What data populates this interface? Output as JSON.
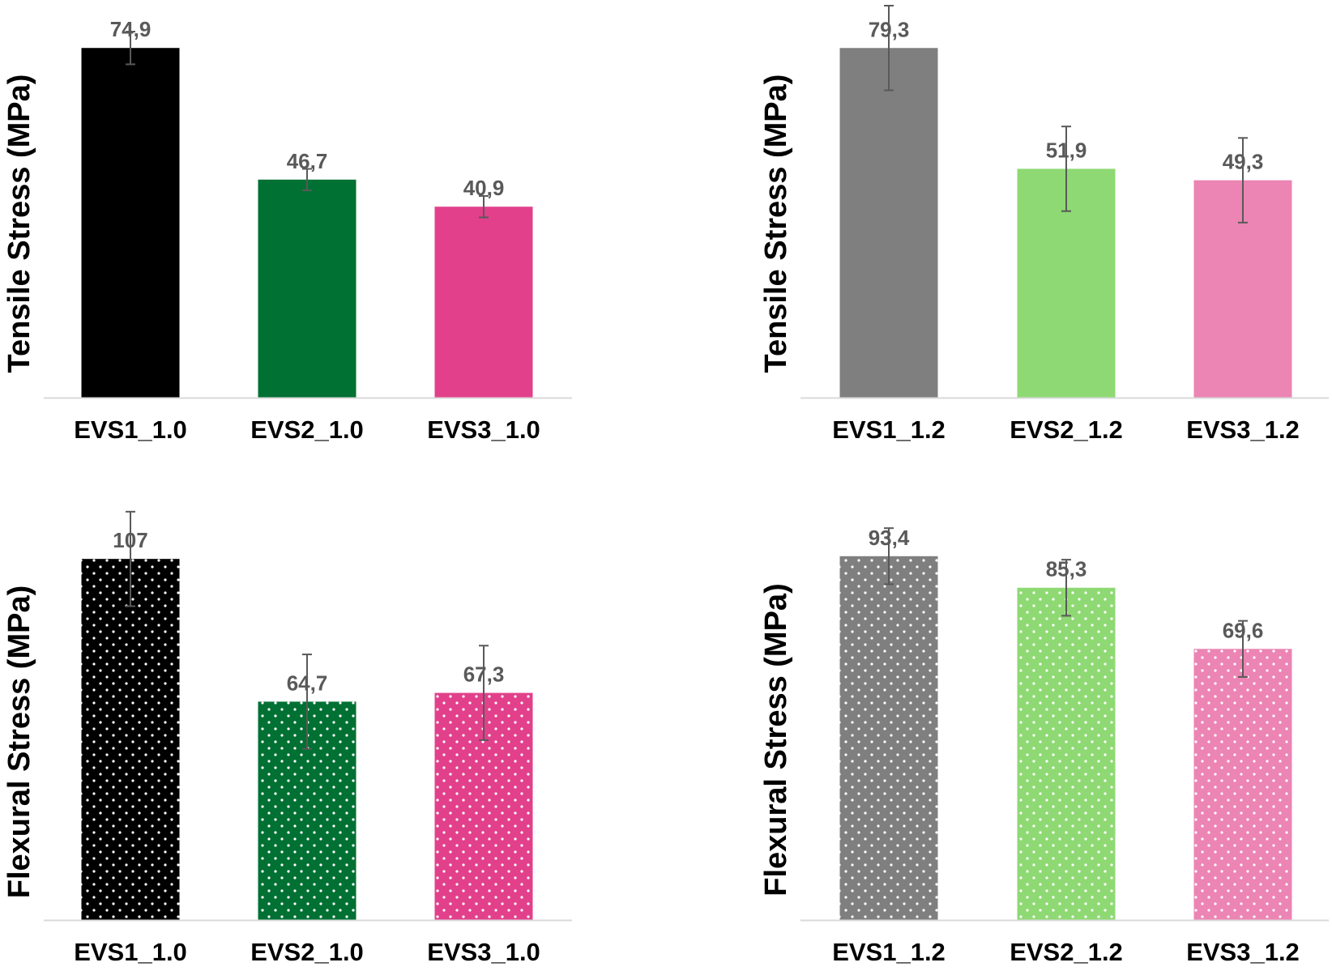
{
  "chart_data": [
    {
      "type": "bar",
      "ylabel": "Tensile Stress (MPa)",
      "categories": [
        "EVS1_1.0",
        "EVS2_1.0",
        "EVS3_1.0"
      ],
      "values": [
        74.9,
        46.7,
        40.9
      ],
      "value_labels": [
        "74,9",
        "46,7",
        "40,9"
      ],
      "errors": [
        3.5,
        2.3,
        2.3
      ],
      "colors": [
        "#000000",
        "#007033",
        "#E2408B"
      ],
      "pattern": "solid",
      "ylim": [
        0,
        85
      ],
      "grid": false,
      "axis_ticks_shown": false
    },
    {
      "type": "bar",
      "ylabel": "Tensile Stress (MPa)",
      "categories": [
        "EVS1_1.2",
        "EVS2_1.2",
        "EVS3_1.2"
      ],
      "values": [
        79.3,
        51.9,
        49.3
      ],
      "value_labels": [
        "79,3",
        "51,9",
        "49,3"
      ],
      "errors": [
        9.6,
        9.6,
        9.6
      ],
      "colors": [
        "#7F7F7F",
        "#8ED973",
        "#EC84B4"
      ],
      "pattern": "solid",
      "ylim": [
        0,
        90
      ],
      "grid": false,
      "axis_ticks_shown": false
    },
    {
      "type": "bar",
      "ylabel": "Flexural Stress (MPa)",
      "categories": [
        "EVS1_1.0",
        "EVS2_1.0",
        "EVS3_1.0"
      ],
      "values": [
        107,
        64.7,
        67.3
      ],
      "value_labels": [
        "107",
        "64,7",
        "67,3"
      ],
      "errors": [
        14,
        14,
        14
      ],
      "colors": [
        "#000000",
        "#007033",
        "#E2408B"
      ],
      "pattern": "dotted",
      "ylim": [
        0,
        120
      ],
      "grid": false,
      "axis_ticks_shown": false
    },
    {
      "type": "bar",
      "ylabel": "Flexural Stress (MPa)",
      "categories": [
        "EVS1_1.2",
        "EVS2_1.2",
        "EVS3_1.2"
      ],
      "values": [
        93.4,
        85.3,
        69.6
      ],
      "value_labels": [
        "93,4",
        "85,3",
        "69,6"
      ],
      "errors": [
        7.2,
        7.2,
        7.2
      ],
      "colors": [
        "#7F7F7F",
        "#8ED973",
        "#EC84B4"
      ],
      "pattern": "dotted",
      "ylim": [
        0,
        105
      ],
      "grid": false,
      "axis_ticks_shown": false
    }
  ]
}
